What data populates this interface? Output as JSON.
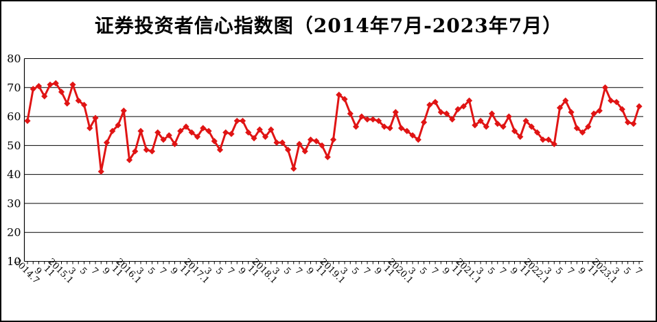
{
  "chart_data": {
    "type": "line",
    "title": "证券投资者信心指数图（2014年7月-2023年7月）",
    "series_name": "证券投资者信心指数",
    "xlabel": "",
    "ylabel": "",
    "ylim": [
      10,
      80
    ],
    "y_ticks": [
      10,
      20,
      30,
      40,
      50,
      60,
      70,
      80
    ],
    "grid": "horizontal",
    "legend_position": "none",
    "line_color": "#E01414",
    "marker": "diamond",
    "x_tick_labels": [
      "2014.7",
      "9",
      "11",
      "2015.1",
      "3",
      "5",
      "7",
      "9",
      "11",
      "2016.1",
      "3",
      "5",
      "7",
      "9",
      "11",
      "2017.1",
      "3",
      "5",
      "7",
      "9",
      "11",
      "2018.1",
      "3",
      "5",
      "7",
      "9",
      "11",
      "2019.1",
      "3",
      "5",
      "7",
      "9",
      "11",
      "2020.1",
      "3",
      "5",
      "7",
      "9",
      "11",
      "2021.1",
      "3",
      "5",
      "7",
      "9",
      "11",
      "2022.1",
      "3",
      "5",
      "7",
      "9",
      "11",
      "2023.1",
      "3",
      "5",
      "7"
    ],
    "x": [
      "2014.7",
      "2014.8",
      "2014.9",
      "2014.10",
      "2014.11",
      "2014.12",
      "2015.1",
      "2015.2",
      "2015.3",
      "2015.4",
      "2015.5",
      "2015.6",
      "2015.7",
      "2015.8",
      "2015.9",
      "2015.10",
      "2015.11",
      "2015.12",
      "2016.1",
      "2016.2",
      "2016.3",
      "2016.4",
      "2016.5",
      "2016.6",
      "2016.7",
      "2016.8",
      "2016.9",
      "2016.10",
      "2016.11",
      "2016.12",
      "2017.1",
      "2017.2",
      "2017.3",
      "2017.4",
      "2017.5",
      "2017.6",
      "2017.7",
      "2017.8",
      "2017.9",
      "2017.10",
      "2017.11",
      "2017.12",
      "2018.1",
      "2018.2",
      "2018.3",
      "2018.4",
      "2018.5",
      "2018.6",
      "2018.7",
      "2018.8",
      "2018.9",
      "2018.10",
      "2018.11",
      "2018.12",
      "2019.1",
      "2019.2",
      "2019.3",
      "2019.4",
      "2019.5",
      "2019.6",
      "2019.7",
      "2019.8",
      "2019.9",
      "2019.10",
      "2019.11",
      "2019.12",
      "2020.1",
      "2020.2",
      "2020.3",
      "2020.4",
      "2020.5",
      "2020.6",
      "2020.7",
      "2020.8",
      "2020.9",
      "2020.10",
      "2020.11",
      "2020.12",
      "2021.1",
      "2021.2",
      "2021.3",
      "2021.4",
      "2021.5",
      "2021.6",
      "2021.7",
      "2021.8",
      "2021.9",
      "2021.10",
      "2021.11",
      "2021.12",
      "2022.1",
      "2022.2",
      "2022.3",
      "2022.4",
      "2022.5",
      "2022.6",
      "2022.7",
      "2022.8",
      "2022.9",
      "2022.10",
      "2022.11",
      "2022.12",
      "2023.1",
      "2023.2",
      "2023.3",
      "2023.4",
      "2023.5",
      "2023.6",
      "2023.7"
    ],
    "values": [
      58.5,
      69.5,
      70.5,
      67,
      71,
      71.5,
      68.5,
      64.5,
      71,
      65.5,
      64,
      56,
      59.5,
      41,
      51,
      55,
      57,
      62,
      45,
      48,
      55,
      48.5,
      48,
      54.5,
      52,
      53.5,
      50.5,
      55,
      56.5,
      54.5,
      53,
      56,
      55,
      51.5,
      48.5,
      54.5,
      54,
      58.5,
      58.5,
      54.5,
      52.5,
      55.5,
      53,
      55.5,
      51,
      51,
      48.5,
      42,
      50.5,
      48,
      52,
      51.5,
      50,
      46,
      52,
      67.5,
      66,
      61,
      56.5,
      60,
      59,
      59,
      58.5,
      56.5,
      56,
      61.5,
      56,
      55,
      53.5,
      52,
      58,
      64,
      65,
      61.5,
      61,
      59,
      62.5,
      63.5,
      65.5,
      57,
      58.5,
      56.5,
      61,
      57.5,
      56.5,
      60,
      55,
      53,
      58.5,
      56.5,
      54.5,
      52,
      52,
      50.5,
      63,
      65.5,
      61.5,
      56,
      54.5,
      56.5,
      61,
      62,
      70,
      65.5,
      65,
      62.5,
      58,
      57.5,
      63.5
    ]
  },
  "colors": {
    "line": "#E01414",
    "grid": "#000000",
    "background": "#FFFFFF",
    "text": "#000000"
  }
}
